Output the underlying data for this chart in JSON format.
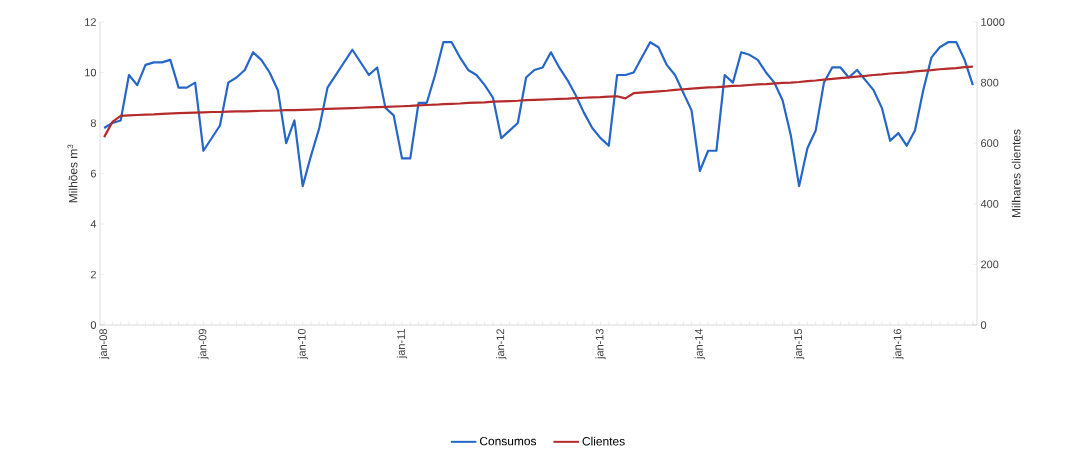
{
  "chart_data": {
    "type": "line",
    "categories": [
      "jan-08",
      null,
      null,
      null,
      null,
      null,
      null,
      null,
      null,
      null,
      null,
      null,
      "jan-09",
      null,
      null,
      null,
      null,
      null,
      null,
      null,
      null,
      null,
      null,
      null,
      "jan-10",
      null,
      null,
      null,
      null,
      null,
      null,
      null,
      null,
      null,
      null,
      null,
      "jan-11",
      null,
      null,
      null,
      null,
      null,
      null,
      null,
      null,
      null,
      null,
      null,
      "jan-12",
      null,
      null,
      null,
      null,
      null,
      null,
      null,
      null,
      null,
      null,
      null,
      "jan-13",
      null,
      null,
      null,
      null,
      null,
      null,
      null,
      null,
      null,
      null,
      null,
      "jan-14",
      null,
      null,
      null,
      null,
      null,
      null,
      null,
      null,
      null,
      null,
      null,
      "jan-15",
      null,
      null,
      null,
      null,
      null,
      null,
      null,
      null,
      null,
      null,
      null,
      "jan-16",
      null,
      null,
      null,
      null,
      null,
      null,
      null,
      null,
      null
    ],
    "ylabel": "Milhões m$^{3}$",
    "y2label": "Milhares clientes",
    "ylim": [
      0,
      12
    ],
    "yticks": [
      0,
      2,
      4,
      6,
      8,
      10,
      12
    ],
    "y2lim": [
      0,
      1000
    ],
    "y2ticks": [
      0,
      200,
      400,
      600,
      800,
      1000
    ],
    "legend": "bottom",
    "series": [
      {
        "name": "Consumos",
        "color": "#2566c8",
        "values": [
          7.8,
          8.0,
          8.1,
          9.9,
          9.5,
          10.3,
          10.4,
          10.4,
          10.5,
          9.4,
          9.4,
          9.6,
          6.9,
          7.4,
          7.9,
          9.6,
          9.8,
          10.1,
          10.8,
          10.5,
          10.0,
          9.3,
          7.2,
          8.1,
          5.5,
          6.7,
          7.8,
          9.4,
          9.9,
          10.4,
          10.9,
          10.4,
          9.9,
          10.2,
          8.6,
          8.3,
          6.6,
          6.6,
          8.8,
          8.8,
          9.9,
          11.2,
          11.2,
          10.6,
          10.1,
          9.9,
          9.5,
          9.0,
          7.4,
          7.7,
          8.0,
          9.8,
          10.1,
          10.2,
          10.8,
          10.2,
          9.7,
          9.1,
          8.4,
          7.8,
          7.4,
          7.1,
          9.9,
          9.9,
          10.0,
          10.6,
          11.2,
          11.0,
          10.3,
          9.9,
          9.2,
          8.5,
          6.1,
          6.9,
          6.9,
          9.9,
          9.6,
          10.8,
          10.7,
          10.5,
          10.0,
          9.6,
          8.9,
          7.5,
          5.5,
          7.0,
          7.7,
          9.6,
          10.2,
          10.2,
          9.8,
          10.1,
          9.7,
          9.3,
          8.6,
          7.3,
          7.6,
          7.1,
          7.7,
          9.3,
          10.6,
          11.0,
          11.2,
          11.2,
          10.5,
          9.5
        ]
      },
      {
        "name": "Clientes",
        "color": "#b52a2a",
        "axis": "y2",
        "values": [
          620,
          670,
          690,
          692,
          693,
          694,
          695,
          697,
          698,
          699,
          700,
          701,
          702,
          703,
          703,
          704,
          705,
          705,
          706,
          707,
          707,
          708,
          709,
          709,
          710,
          711,
          712,
          713,
          714,
          715,
          716,
          717,
          718,
          719,
          720,
          721,
          722,
          723,
          725,
          726,
          727,
          729,
          730,
          731,
          733,
          734,
          735,
          737,
          738,
          739,
          740,
          742,
          743,
          744,
          745,
          746,
          747,
          749,
          750,
          751,
          752,
          754,
          755,
          748,
          765,
          767,
          769,
          771,
          773,
          776,
          778,
          780,
          782,
          784,
          785,
          787,
          789,
          790,
          792,
          794,
          795,
          797,
          799,
          800,
          802,
          805,
          807,
          810,
          812,
          815,
          817,
          820,
          822,
          825,
          827,
          830,
          832,
          834,
          837,
          839,
          841,
          844,
          846,
          848,
          851,
          853
        ]
      }
    ]
  }
}
